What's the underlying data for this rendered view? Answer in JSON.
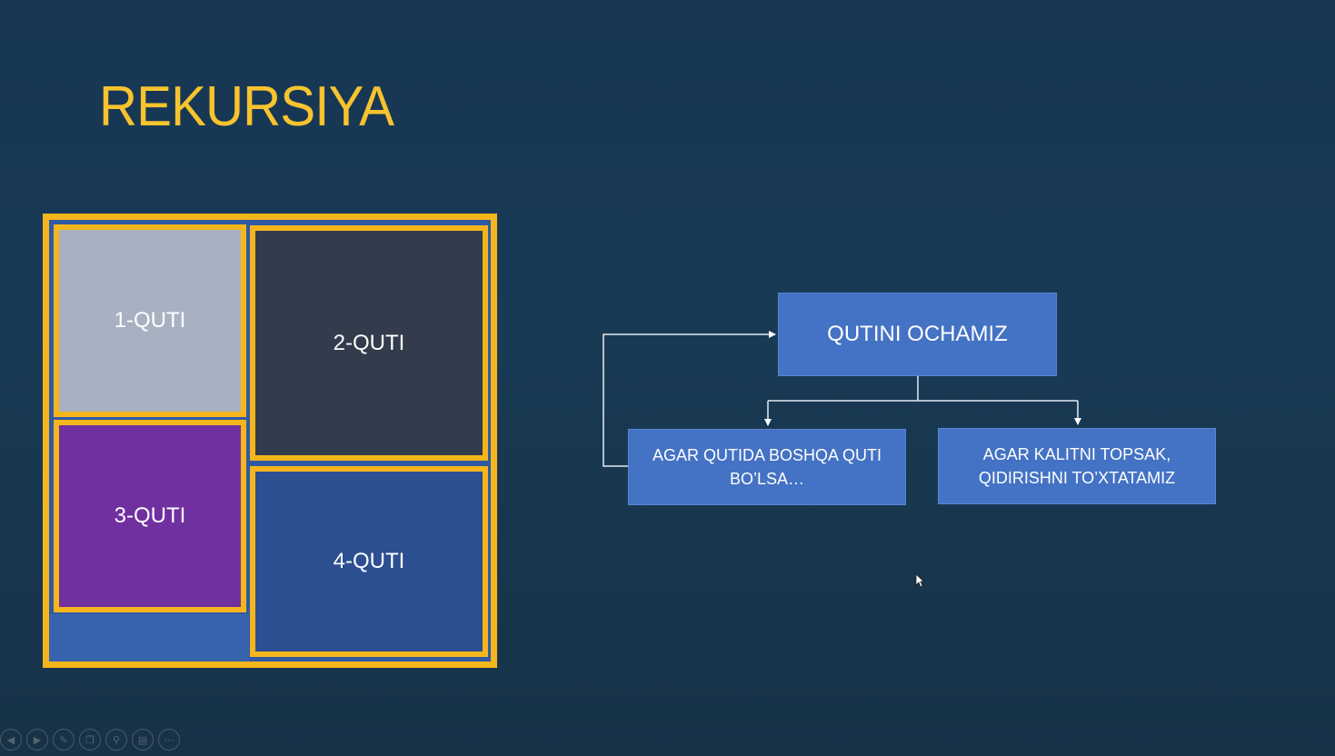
{
  "slide": {
    "title": "REKURSIYA",
    "colors": {
      "accent": "#f7c32e",
      "box_border": "#f5b51d",
      "flow_box": "#4472c4",
      "box1": "#a7b1c1",
      "box2": "#333c4c",
      "box3": "#7030a0",
      "box4": "#2c4f92"
    }
  },
  "boxes": [
    {
      "label": "1-QUTI"
    },
    {
      "label": "2-QUTI"
    },
    {
      "label": "3-QUTI"
    },
    {
      "label": "4-QUTI"
    }
  ],
  "flow": {
    "main": "QUTINI OCHAMIZ",
    "branch_left": "AGAR QUTIDA BOSHQA QUTI BO’LSA…",
    "branch_right": "AGAR KALITNI TOPSAK, QIDIRISHNI TO’XTATAMIZ"
  },
  "toolbar": {
    "buttons": [
      {
        "icon": "previous-icon",
        "glyph": "◀"
      },
      {
        "icon": "next-icon",
        "glyph": "▶"
      },
      {
        "icon": "pen-icon",
        "glyph": "✎"
      },
      {
        "icon": "slides-icon",
        "glyph": "❐"
      },
      {
        "icon": "zoom-icon",
        "glyph": "⚲"
      },
      {
        "icon": "subtitles-icon",
        "glyph": "▤"
      },
      {
        "icon": "more-icon",
        "glyph": "⋯"
      }
    ]
  }
}
